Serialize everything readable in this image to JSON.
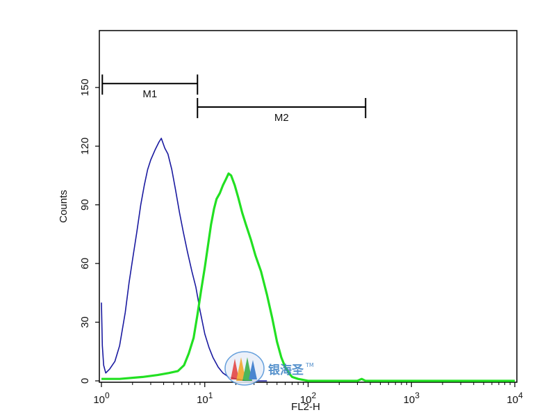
{
  "chart_data": {
    "type": "line",
    "xlabel": "FL2-H",
    "ylabel": "Counts",
    "x_scale": "log",
    "xlim": [
      1,
      10000
    ],
    "ylim": [
      0,
      160
    ],
    "x_ticks": [
      {
        "value": 1,
        "base": "10",
        "exp": "0"
      },
      {
        "value": 10,
        "base": "10",
        "exp": "1"
      },
      {
        "value": 100,
        "base": "10",
        "exp": "2"
      },
      {
        "value": 1000,
        "base": "10",
        "exp": "3"
      },
      {
        "value": 10000,
        "base": "10",
        "exp": "4"
      }
    ],
    "y_ticks": [
      {
        "value": 0,
        "label": "0"
      },
      {
        "value": 30,
        "label": "30"
      },
      {
        "value": 60,
        "label": "60"
      },
      {
        "value": 90,
        "label": "90"
      },
      {
        "value": 120,
        "label": "120"
      },
      {
        "value": 150,
        "label": "150"
      }
    ],
    "grid": false,
    "legend": "none",
    "markers": [
      {
        "label": "M1",
        "x_start": 1.02,
        "x_end": 8.5,
        "y": 152
      },
      {
        "label": "M2",
        "x_start": 8.5,
        "x_end": 360,
        "y": 140
      }
    ],
    "series": [
      {
        "color": "#1a1aa0",
        "points": [
          [
            1.0,
            40
          ],
          [
            1.02,
            18
          ],
          [
            1.05,
            8
          ],
          [
            1.1,
            4
          ],
          [
            1.2,
            6
          ],
          [
            1.35,
            10
          ],
          [
            1.5,
            18
          ],
          [
            1.7,
            35
          ],
          [
            1.85,
            50
          ],
          [
            2.0,
            62
          ],
          [
            2.2,
            76
          ],
          [
            2.4,
            90
          ],
          [
            2.6,
            100
          ],
          [
            2.8,
            108
          ],
          [
            3.0,
            113
          ],
          [
            3.3,
            118
          ],
          [
            3.6,
            122
          ],
          [
            3.8,
            124
          ],
          [
            4.1,
            119
          ],
          [
            4.4,
            116
          ],
          [
            4.8,
            108
          ],
          [
            5.2,
            98
          ],
          [
            5.7,
            86
          ],
          [
            6.2,
            76
          ],
          [
            6.8,
            66
          ],
          [
            7.5,
            56
          ],
          [
            8.2,
            48
          ],
          [
            9.0,
            36
          ],
          [
            10.0,
            24
          ],
          [
            11.0,
            17
          ],
          [
            12.0,
            12
          ],
          [
            13.5,
            7
          ],
          [
            15.0,
            4
          ],
          [
            17.0,
            2
          ],
          [
            20.0,
            1
          ],
          [
            25.0,
            0
          ],
          [
            40.0,
            0
          ]
        ]
      },
      {
        "color": "#22e022",
        "points": [
          [
            1.0,
            1
          ],
          [
            1.5,
            1
          ],
          [
            2.5,
            2
          ],
          [
            3.5,
            3
          ],
          [
            4.5,
            4
          ],
          [
            5.5,
            5
          ],
          [
            6.3,
            8
          ],
          [
            7.0,
            14
          ],
          [
            7.8,
            22
          ],
          [
            8.5,
            34
          ],
          [
            9.2,
            46
          ],
          [
            10.0,
            58
          ],
          [
            10.8,
            70
          ],
          [
            11.5,
            80
          ],
          [
            12.3,
            88
          ],
          [
            13.0,
            93
          ],
          [
            14.0,
            96
          ],
          [
            15.0,
            100
          ],
          [
            16.0,
            103
          ],
          [
            17.0,
            106
          ],
          [
            18.0,
            105
          ],
          [
            19.5,
            100
          ],
          [
            21.0,
            94
          ],
          [
            23.0,
            86
          ],
          [
            25.0,
            80
          ],
          [
            28.0,
            72
          ],
          [
            31.0,
            64
          ],
          [
            35.0,
            56
          ],
          [
            40.0,
            44
          ],
          [
            45.0,
            32
          ],
          [
            50.0,
            20
          ],
          [
            55.0,
            12
          ],
          [
            60.0,
            7
          ],
          [
            65.0,
            4
          ],
          [
            70.0,
            2
          ],
          [
            80.0,
            1
          ],
          [
            100.0,
            0
          ],
          [
            300.0,
            0
          ],
          [
            330.0,
            1
          ],
          [
            360.0,
            0
          ],
          [
            10000.0,
            0
          ]
        ]
      }
    ]
  },
  "watermark": {
    "text": "银海圣",
    "tm": "TM"
  }
}
